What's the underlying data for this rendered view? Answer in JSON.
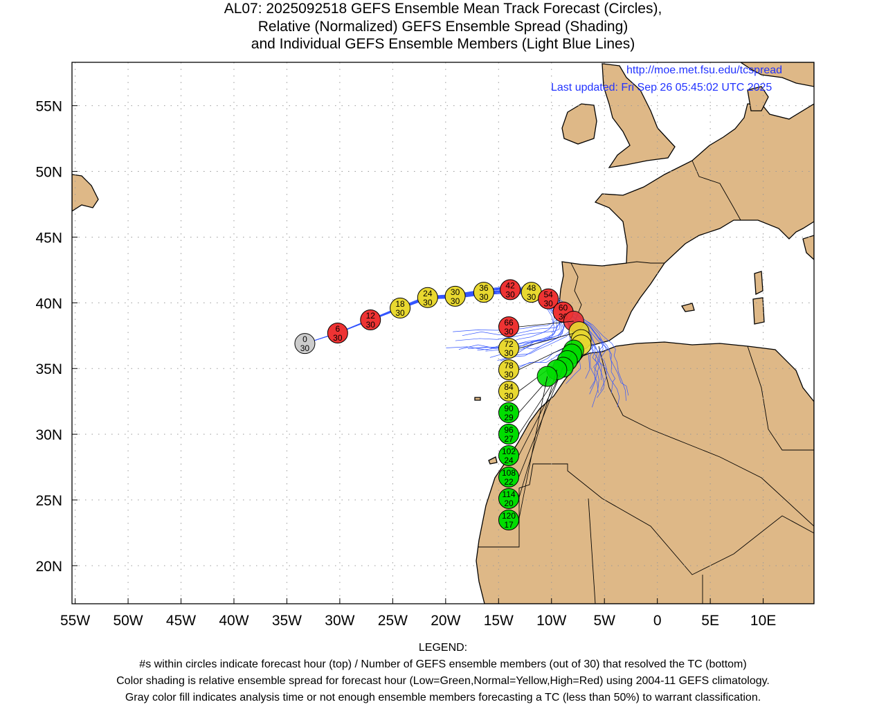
{
  "title": {
    "line1": "AL07: 2025092518 GEFS Ensemble Mean Track Forecast (Circles),",
    "line2": "Relative (Normalized) GEFS Ensemble Spread (Shading)",
    "line3": "and Individual GEFS Ensemble Members (Light Blue Lines)"
  },
  "annotations": {
    "url": "http://moe.met.fsu.edu/tcspread",
    "updated": "Last updated: Fri Sep 26 05:45:02 UTC 2025"
  },
  "colors": {
    "land": "#deb887",
    "ocean": "#ffffff",
    "members": "#3355ff",
    "low": "#00dd00",
    "normal": "#e8d830",
    "high": "#ee3333",
    "na": "#cccccc"
  },
  "chart_data": {
    "type": "scatter",
    "xlim": [
      -55.3,
      14.8
    ],
    "ylim": [
      17.1,
      58.3
    ],
    "x_ticks": [
      {
        "v": -55,
        "label": "55W"
      },
      {
        "v": -50,
        "label": "50W"
      },
      {
        "v": -45,
        "label": "45W"
      },
      {
        "v": -40,
        "label": "40W"
      },
      {
        "v": -35,
        "label": "35W"
      },
      {
        "v": -30,
        "label": "30W"
      },
      {
        "v": -25,
        "label": "25W"
      },
      {
        "v": -20,
        "label": "20W"
      },
      {
        "v": -15,
        "label": "15W"
      },
      {
        "v": -10,
        "label": "10W"
      },
      {
        "v": -5,
        "label": "5W"
      },
      {
        "v": 0,
        "label": "0"
      },
      {
        "v": 5,
        "label": "5E"
      },
      {
        "v": 10,
        "label": "10E"
      }
    ],
    "y_ticks": [
      {
        "v": 55,
        "label": "55N"
      },
      {
        "v": 50,
        "label": "50N"
      },
      {
        "v": 45,
        "label": "45N"
      },
      {
        "v": 40,
        "label": "40N"
      },
      {
        "v": 35,
        "label": "35N"
      },
      {
        "v": 30,
        "label": "30N"
      },
      {
        "v": 25,
        "label": "25N"
      },
      {
        "v": 20,
        "label": "20N"
      }
    ],
    "grid": true,
    "track": [
      {
        "hour": "0",
        "members": "30",
        "lon": -33.3,
        "lat": 36.9,
        "spread": "na"
      },
      {
        "hour": "6",
        "members": "30",
        "lon": -30.2,
        "lat": 37.7,
        "spread": "high"
      },
      {
        "hour": "12",
        "members": "30",
        "lon": -27.1,
        "lat": 38.7,
        "spread": "high"
      },
      {
        "hour": "18",
        "members": "30",
        "lon": -24.3,
        "lat": 39.6,
        "spread": "normal"
      },
      {
        "hour": "24",
        "members": "30",
        "lon": -21.7,
        "lat": 40.4,
        "spread": "normal"
      },
      {
        "hour": "30",
        "members": "30",
        "lon": -19.1,
        "lat": 40.5,
        "spread": "normal"
      },
      {
        "hour": "36",
        "members": "30",
        "lon": -16.4,
        "lat": 40.8,
        "spread": "normal"
      },
      {
        "hour": "42",
        "members": "30",
        "lon": -13.9,
        "lat": 41.0,
        "spread": "high"
      },
      {
        "hour": "48",
        "members": "30",
        "lon": -11.9,
        "lat": 40.8,
        "spread": "normal"
      },
      {
        "hour": "54",
        "members": "30",
        "lon": -10.3,
        "lat": 40.3,
        "spread": "high"
      },
      {
        "hour": "60",
        "members": "30",
        "lon": -8.9,
        "lat": 39.3,
        "spread": "high"
      },
      {
        "hour": "66",
        "members": "30",
        "lon": -7.9,
        "lat": 38.6,
        "spread": "high"
      },
      {
        "hour": "72",
        "members": "30",
        "lon": -7.4,
        "lat": 37.8,
        "spread": "normal"
      },
      {
        "hour": "78",
        "members": "30",
        "lon": -7.2,
        "lat": 37.2,
        "spread": "normal"
      },
      {
        "hour": "84",
        "members": "30",
        "lon": -7.2,
        "lat": 36.8,
        "spread": "normal"
      },
      {
        "hour": "90",
        "members": "29",
        "lon": -7.9,
        "lat": 36.4,
        "spread": "low"
      },
      {
        "hour": "96",
        "members": "27",
        "lon": -8.1,
        "lat": 36.1,
        "spread": "low"
      },
      {
        "hour": "102",
        "members": "24",
        "lon": -8.5,
        "lat": 35.6,
        "spread": "low"
      },
      {
        "hour": "108",
        "members": "22",
        "lon": -8.9,
        "lat": 35.1,
        "spread": "low"
      },
      {
        "hour": "114",
        "members": "20",
        "lon": -9.5,
        "lat": 34.9,
        "spread": "low"
      },
      {
        "hour": "120",
        "members": "17",
        "lon": -10.4,
        "lat": 34.4,
        "spread": "low"
      }
    ]
  },
  "legend": {
    "heading": "LEGEND:",
    "line1": "#s within circles indicate forecast hour (top) / Number of GEFS ensemble members (out of 30) that resolved the TC (bottom)",
    "line2": "Color shading is relative ensemble spread for forecast hour (Low=Green,Normal=Yellow,High=Red) using 2004-11 GEFS climatology.",
    "line3": "Gray color fill indicates analysis time or not enough ensemble members forecasting a TC (less than 50%) to warrant classification."
  }
}
